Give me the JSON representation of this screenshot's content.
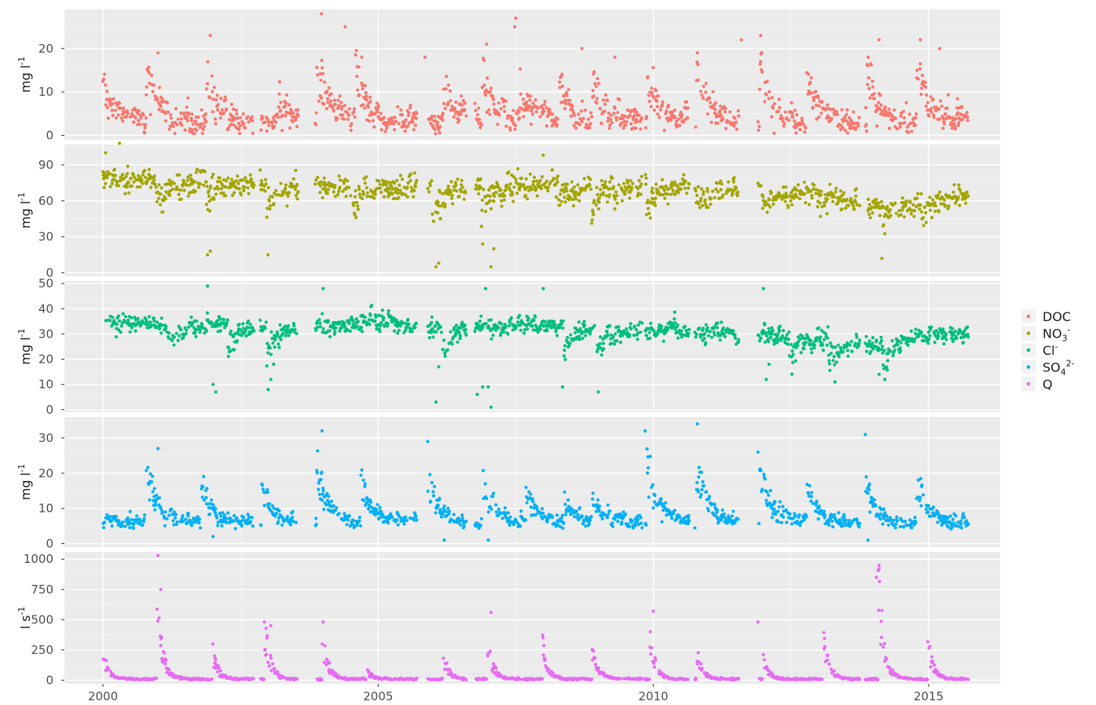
{
  "chart_data": {
    "type": "scatter",
    "x_axis": {
      "range": [
        1999.3,
        2016.3
      ],
      "ticks": [
        2000,
        2005,
        2010,
        2015
      ],
      "tick_labels": [
        "2000",
        "2005",
        "2010",
        "2015"
      ]
    },
    "gaps": [
      [
        2002.75,
        2002.85
      ],
      [
        2003.55,
        2003.85
      ],
      [
        2005.7,
        2005.9
      ],
      [
        2006.6,
        2006.75
      ],
      [
        2009.8,
        2009.85
      ],
      [
        2010.65,
        2010.75
      ],
      [
        2011.55,
        2011.9
      ],
      [
        2013.75,
        2013.85
      ]
    ],
    "legend": {
      "placement": "right",
      "entries": [
        {
          "base": "DOC",
          "sub": "",
          "sup": "",
          "color": "#F8766D"
        },
        {
          "base": "NO",
          "sub": "3",
          "sup": "-",
          "color": "#A3A500"
        },
        {
          "base": "Cl",
          "sub": "",
          "sup": "-",
          "color": "#00BF7D"
        },
        {
          "base": "SO",
          "sub": "4",
          "sup": "2-",
          "color": "#00B0F6"
        },
        {
          "base": "Q",
          "sub": "",
          "sup": "",
          "color": "#E76BF3"
        }
      ]
    },
    "panels": [
      {
        "series": "DOC",
        "color": "#F8766D",
        "ylabel": {
          "base": "mg l",
          "sup": "-1"
        },
        "ylim": [
          -1,
          29
        ],
        "yticks": [
          0,
          10,
          20
        ],
        "ytick_labels": [
          "0",
          "10",
          "20"
        ],
        "baseline": 3,
        "spread": 2.2,
        "peaks": [
          [
            2000.0,
            9
          ],
          [
            2000.8,
            12
          ],
          [
            2001.9,
            9
          ],
          [
            2003.2,
            6
          ],
          [
            2003.9,
            12
          ],
          [
            2004.6,
            11
          ],
          [
            2006.2,
            8
          ],
          [
            2006.9,
            11
          ],
          [
            2007.6,
            7
          ],
          [
            2008.3,
            9
          ],
          [
            2008.9,
            9
          ],
          [
            2009.9,
            10
          ],
          [
            2010.8,
            11
          ],
          [
            2011.95,
            11
          ],
          [
            2012.8,
            10
          ],
          [
            2013.9,
            10
          ],
          [
            2014.8,
            11
          ]
        ],
        "peak_decay": 0.22,
        "outliers": [
          [
            2001.95,
            23
          ],
          [
            2003.97,
            28
          ],
          [
            2004.4,
            25
          ],
          [
            2004.7,
            18
          ],
          [
            2005.85,
            18
          ],
          [
            2007.5,
            27
          ],
          [
            2007.48,
            25
          ],
          [
            2006.97,
            21
          ],
          [
            2008.7,
            20
          ],
          [
            2009.3,
            18
          ],
          [
            2011.6,
            22
          ],
          [
            2011.95,
            23
          ],
          [
            2014.1,
            22
          ],
          [
            2014.85,
            22
          ],
          [
            2015.2,
            20
          ],
          [
            2001.0,
            19
          ],
          [
            2010.8,
            19
          ],
          [
            2013.9,
            18
          ]
        ]
      },
      {
        "series": "NO3-",
        "color": "#A3A500",
        "ylabel": {
          "base": "mg l",
          "sup": "-1"
        },
        "ylim": [
          -3,
          107
        ],
        "yticks": [
          0,
          30,
          60,
          90
        ],
        "ytick_labels": [
          "0",
          "30",
          "60",
          "90"
        ],
        "baseline": 75,
        "spread": 7,
        "dips": [
          [
            2001.0,
            28
          ],
          [
            2001.9,
            20
          ],
          [
            2003.0,
            25
          ],
          [
            2004.5,
            18
          ],
          [
            2006.0,
            30
          ],
          [
            2006.9,
            20
          ],
          [
            2008.3,
            15
          ],
          [
            2008.9,
            20
          ],
          [
            2009.9,
            20
          ],
          [
            2010.8,
            18
          ],
          [
            2012.0,
            20
          ],
          [
            2013.0,
            12
          ],
          [
            2014.2,
            15
          ],
          [
            2014.9,
            15
          ]
        ],
        "dip_decay": 0.25,
        "trend": [
          [
            2000,
            80
          ],
          [
            2005,
            72
          ],
          [
            2010,
            72
          ],
          [
            2013,
            68
          ],
          [
            2014,
            55
          ],
          [
            2015,
            62
          ]
        ],
        "outliers": [
          [
            2000.05,
            100
          ],
          [
            2000.3,
            108
          ],
          [
            2001.9,
            15
          ],
          [
            2001.95,
            18
          ],
          [
            2003.0,
            15
          ],
          [
            2006.05,
            5
          ],
          [
            2006.1,
            8
          ],
          [
            2006.9,
            24
          ],
          [
            2007.05,
            5
          ],
          [
            2007.1,
            20
          ],
          [
            2008.0,
            98
          ],
          [
            2014.15,
            12
          ]
        ]
      },
      {
        "series": "Cl-",
        "color": "#00BF7D",
        "ylabel": {
          "base": "mg l",
          "sup": "-1"
        },
        "ylim": [
          -1,
          51
        ],
        "yticks": [
          0,
          10,
          20,
          30,
          40,
          50
        ],
        "ytick_labels": [
          "0",
          "10",
          "20",
          "30",
          "40",
          "50"
        ],
        "baseline": 34,
        "spread": 2.5,
        "dips": [
          [
            2001.2,
            10
          ],
          [
            2002.3,
            10
          ],
          [
            2003.0,
            12
          ],
          [
            2006.2,
            10
          ],
          [
            2008.4,
            10
          ],
          [
            2009.0,
            10
          ],
          [
            2012.5,
            10
          ],
          [
            2013.2,
            10
          ],
          [
            2014.2,
            10
          ]
        ],
        "dip_decay": 0.2,
        "trend": [
          [
            2000,
            34
          ],
          [
            2009,
            33
          ],
          [
            2011,
            31
          ],
          [
            2013,
            28
          ],
          [
            2014,
            25
          ],
          [
            2015,
            30
          ]
        ],
        "outliers": [
          [
            2001.9,
            49
          ],
          [
            2002.0,
            10
          ],
          [
            2002.05,
            7
          ],
          [
            2003.0,
            8
          ],
          [
            2003.05,
            12
          ],
          [
            2003.1,
            18
          ],
          [
            2004.0,
            48
          ],
          [
            2006.05,
            3
          ],
          [
            2006.1,
            17
          ],
          [
            2006.8,
            6
          ],
          [
            2006.9,
            9
          ],
          [
            2007.0,
            9
          ],
          [
            2007.05,
            1
          ],
          [
            2006.95,
            48
          ],
          [
            2008.0,
            48
          ],
          [
            2008.35,
            9
          ],
          [
            2009.0,
            7
          ],
          [
            2012.0,
            48
          ],
          [
            2012.05,
            12
          ],
          [
            2012.1,
            18
          ],
          [
            2013.3,
            11
          ],
          [
            2014.1,
            14
          ]
        ]
      },
      {
        "series": "SO42-",
        "color": "#00B0F6",
        "ylabel": {
          "base": "mg l",
          "sup": "-1"
        },
        "ylim": [
          -1,
          36
        ],
        "yticks": [
          0,
          10,
          20,
          30
        ],
        "ytick_labels": [
          "0",
          "10",
          "20",
          "30"
        ],
        "baseline": 6,
        "spread": 1.5,
        "peaks": [
          [
            2000.8,
            14
          ],
          [
            2001.8,
            10
          ],
          [
            2002.9,
            8
          ],
          [
            2003.9,
            14
          ],
          [
            2004.7,
            10
          ],
          [
            2005.9,
            12
          ],
          [
            2006.9,
            12
          ],
          [
            2007.7,
            8
          ],
          [
            2008.4,
            6
          ],
          [
            2008.9,
            6
          ],
          [
            2009.9,
            14
          ],
          [
            2010.8,
            14
          ],
          [
            2011.95,
            14
          ],
          [
            2012.8,
            10
          ],
          [
            2013.8,
            14
          ],
          [
            2014.8,
            12
          ]
        ],
        "peak_decay": 0.2,
        "outliers": [
          [
            2003.98,
            32
          ],
          [
            2005.9,
            29
          ],
          [
            2009.85,
            32
          ],
          [
            2010.8,
            34
          ],
          [
            2013.85,
            31
          ],
          [
            2001.0,
            27
          ],
          [
            2011.9,
            26
          ],
          [
            2002.0,
            2
          ],
          [
            2006.2,
            1
          ],
          [
            2013.9,
            1
          ],
          [
            2007.0,
            1
          ]
        ]
      },
      {
        "series": "Q",
        "color": "#E76BF3",
        "ylabel": {
          "base": "l s",
          "sup": "-1"
        },
        "ylim": [
          -30,
          1060
        ],
        "yticks": [
          0,
          250,
          500,
          750,
          1000
        ],
        "ytick_labels": [
          "0",
          "250",
          "500",
          "750",
          "1000"
        ],
        "baseline": 8,
        "spread": 6,
        "peaks": [
          [
            2000.0,
            200
          ],
          [
            2001.0,
            500
          ],
          [
            2002.0,
            200
          ],
          [
            2002.95,
            350
          ],
          [
            2004.0,
            300
          ],
          [
            2004.8,
            60
          ],
          [
            2006.2,
            150
          ],
          [
            2007.0,
            250
          ],
          [
            2008.0,
            250
          ],
          [
            2008.9,
            250
          ],
          [
            2009.95,
            300
          ],
          [
            2010.8,
            200
          ],
          [
            2012.0,
            150
          ],
          [
            2013.1,
            300
          ],
          [
            2014.1,
            650
          ],
          [
            2015.0,
            250
          ]
        ],
        "peak_decay": 0.1,
        "outliers": [
          [
            2001.0,
            1030
          ],
          [
            2001.05,
            750
          ],
          [
            2014.1,
            920
          ],
          [
            2014.05,
            850
          ],
          [
            2007.05,
            560
          ],
          [
            2010.0,
            570
          ],
          [
            2004.0,
            480
          ],
          [
            2011.9,
            480
          ],
          [
            2003.05,
            450
          ]
        ]
      }
    ]
  }
}
